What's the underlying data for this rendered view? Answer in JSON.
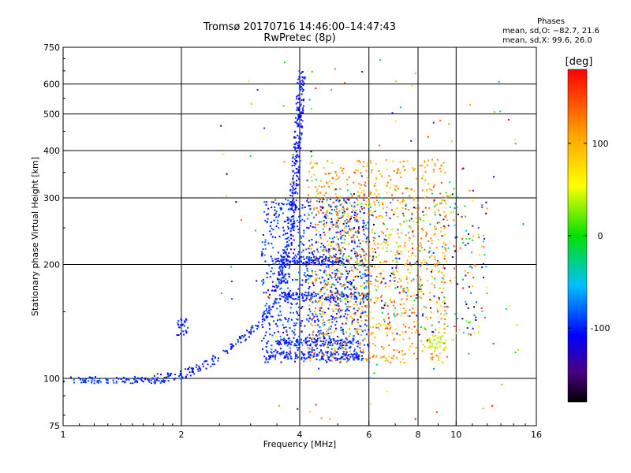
{
  "header": {
    "title_line1": "Tromsø 20170716 14:46:00–14:47:43",
    "title_line2": "RwPretec (8p)"
  },
  "phases_box": {
    "title": "Phases",
    "line_o": "mean, sd,O: −82.7, 21.6",
    "line_x": "mean, sd,X:  99.6, 26.0"
  },
  "chart_data": {
    "type": "scatter",
    "xlabel": "Frequency [MHz]",
    "ylabel": "Stationary phase Virtual Height [km]",
    "x_scale": "log",
    "y_scale": "log",
    "xlim": [
      1,
      16
    ],
    "ylim": [
      75,
      750
    ],
    "x_ticks": [
      1,
      2,
      4,
      6,
      8,
      10,
      16
    ],
    "y_ticks": [
      75,
      100,
      200,
      300,
      400,
      500,
      600,
      750
    ],
    "x_grid": [
      2,
      4,
      6,
      8,
      10
    ],
    "y_grid": [
      100,
      200,
      300,
      400,
      500,
      600
    ],
    "grid": true,
    "colorbar": {
      "label": "[deg]",
      "range": [
        -180,
        180
      ],
      "ticks": [
        100,
        0,
        -100
      ],
      "colormap": "rainbow"
    },
    "clusters": [
      {
        "name": "low-frequency trace",
        "x_range": [
          1.0,
          1.7
        ],
        "y_range": [
          96,
          101
        ],
        "phase": -95
      },
      {
        "name": "rising trace",
        "x_range": [
          1.7,
          3.5
        ],
        "y_range": [
          100,
          160
        ],
        "phase": -100
      },
      {
        "name": "E/F cusp",
        "x_range": [
          3.3,
          4.1
        ],
        "y_range": [
          170,
          650
        ],
        "phase": -105
      },
      {
        "name": "F-region blue",
        "x_range": [
          3.2,
          6.0
        ],
        "y_range": [
          110,
          300
        ],
        "phase": -95
      },
      {
        "name": "F-region orange",
        "x_range": [
          4.2,
          9.5
        ],
        "y_range": [
          110,
          380
        ],
        "phase": 120
      },
      {
        "name": "mixed upper",
        "x_range": [
          4.5,
          12
        ],
        "y_range": [
          150,
          300
        ],
        "phase": 40
      },
      {
        "name": "green patch",
        "x_range": [
          8.5,
          9.5
        ],
        "y_range": [
          120,
          130
        ],
        "phase": 50
      }
    ]
  }
}
